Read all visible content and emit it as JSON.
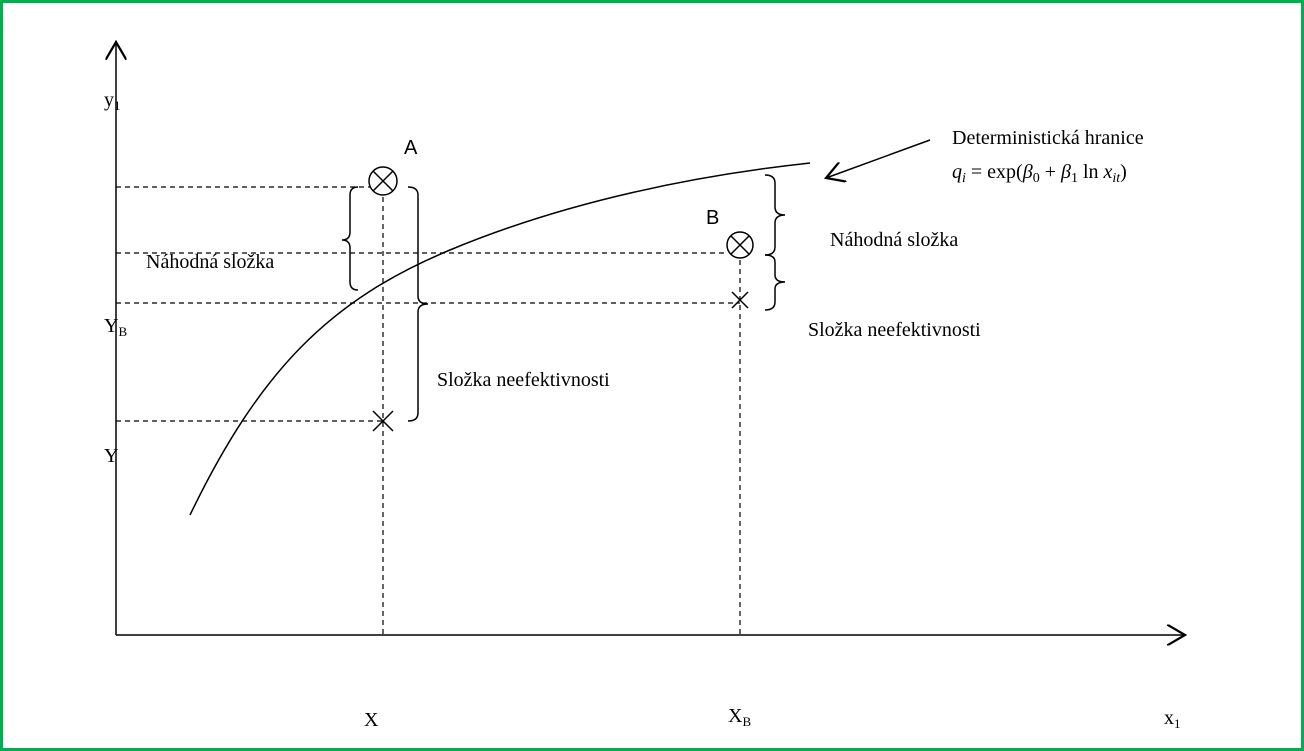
{
  "labels": {
    "y_axis": {
      "text": "y",
      "sub": "1"
    },
    "x_axis": {
      "text": "x",
      "sub": "1"
    },
    "y_b": {
      "text": "Y",
      "sub": "B"
    },
    "y": "Y",
    "x": "X",
    "x_b": {
      "text": "X",
      "sub": "B"
    },
    "point_a": "A",
    "point_b": "B",
    "frontier": "Deterministická hranice",
    "formula": [
      "q",
      "i",
      " = exp(",
      "β",
      "0",
      " + ",
      "β",
      "1",
      " ln ",
      "x",
      "it",
      ")"
    ],
    "random_left": "Náhodná složka",
    "random_right": "Náhodná složka",
    "inefficiency_left": "Složka neefektivnosti",
    "inefficiency_right": "Složka neefektivnosti"
  }
}
